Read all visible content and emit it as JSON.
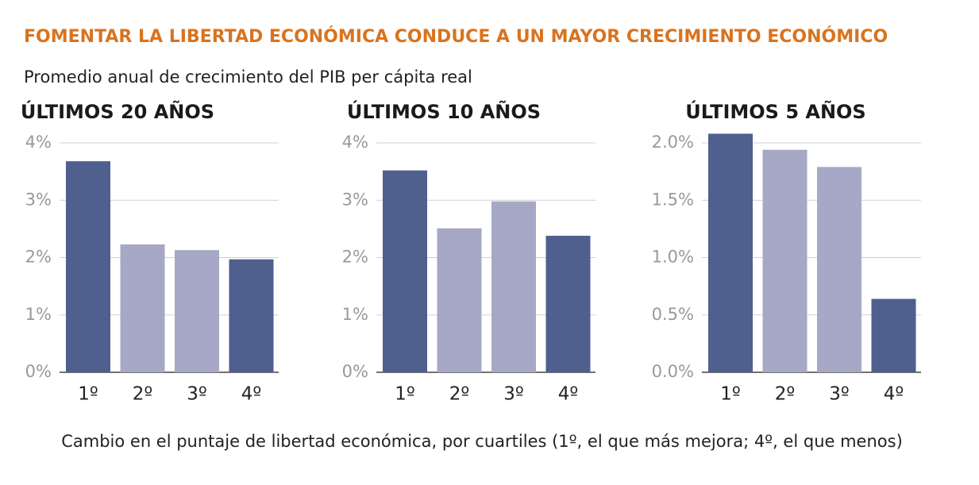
{
  "title": "FOMENTAR LA LIBERTAD ECONÓMICA CONDUCE A UN MAYOR CRECIMIENTO ECONÓMICO",
  "subtitle": "Promedio anual de crecimiento del PIB per cápita real",
  "x_label": "Cambio en el puntaje de libertad económica, por cuartiles (1º, el que más mejora; 4º, el que menos)",
  "chart_data": [
    {
      "type": "bar",
      "title": "ÚLTIMOS 20 AÑOS",
      "categories": [
        "1º",
        "2º",
        "3º",
        "4º"
      ],
      "values": [
        3.68,
        2.23,
        2.13,
        1.97
      ],
      "colors": [
        "#4f5f8e",
        "#a6a8c6",
        "#a6a8c6",
        "#4f5f8e"
      ],
      "ylim": [
        0,
        4
      ],
      "yticks": [
        {
          "value": 0,
          "label": "0%"
        },
        {
          "value": 1,
          "label": "1%"
        },
        {
          "value": 2,
          "label": "2%"
        },
        {
          "value": 3,
          "label": "3%"
        },
        {
          "value": 4,
          "label": "4%"
        }
      ],
      "grid": true
    },
    {
      "type": "bar",
      "title": "ÚLTIMOS 10 AÑOS",
      "categories": [
        "1º",
        "2º",
        "3º",
        "4º"
      ],
      "values": [
        3.52,
        2.51,
        2.98,
        2.38
      ],
      "colors": [
        "#4f5f8e",
        "#a6a8c6",
        "#a6a8c6",
        "#4f5f8e"
      ],
      "ylim": [
        0,
        4
      ],
      "yticks": [
        {
          "value": 0,
          "label": "0%"
        },
        {
          "value": 1,
          "label": "1%"
        },
        {
          "value": 2,
          "label": "2%"
        },
        {
          "value": 3,
          "label": "3%"
        },
        {
          "value": 4,
          "label": "4%"
        }
      ],
      "grid": true
    },
    {
      "type": "bar",
      "title": "ÚLTIMOS 5 AÑOS",
      "categories": [
        "1º",
        "2º",
        "3º",
        "4º"
      ],
      "values": [
        2.08,
        1.94,
        1.79,
        0.64
      ],
      "colors": [
        "#4f5f8e",
        "#a6a8c6",
        "#a6a8c6",
        "#4f5f8e"
      ],
      "ylim": [
        0,
        2.1
      ],
      "yticks": [
        {
          "value": 0,
          "label": "0.0%"
        },
        {
          "value": 0.5,
          "label": "0.5%"
        },
        {
          "value": 1,
          "label": "1.0%"
        },
        {
          "value": 1.5,
          "label": "1.5%"
        },
        {
          "value": 2,
          "label": "2.0%"
        }
      ],
      "grid": true
    }
  ]
}
